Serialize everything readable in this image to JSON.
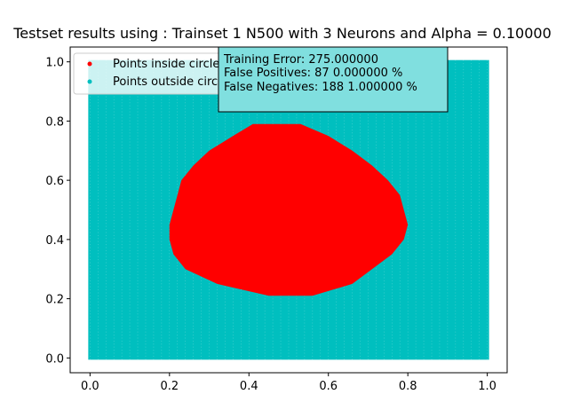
{
  "chart_data": {
    "type": "scatter",
    "title": "Testset results using : Trainset 1 N500 with 3 Neurons and Alpha = 0.10000",
    "xlabel": "",
    "ylabel": "",
    "xlim": [
      -0.05,
      1.05
    ],
    "ylim": [
      -0.05,
      1.05
    ],
    "xticks": [
      "0.0",
      "0.2",
      "0.4",
      "0.6",
      "0.8",
      "1.0"
    ],
    "yticks": [
      "0.0",
      "0.2",
      "0.4",
      "0.6",
      "0.8",
      "1.0"
    ],
    "grid": false,
    "legend_position": "upper-left",
    "series": [
      {
        "name": "Points inside circle",
        "color": "#ff0000",
        "marker": "dot",
        "region_boundary": {
          "y": [
            0.21,
            0.25,
            0.3,
            0.35,
            0.4,
            0.45,
            0.5,
            0.55,
            0.6,
            0.65,
            0.7,
            0.75,
            0.79
          ],
          "x_min": [
            0.45,
            0.32,
            0.24,
            0.21,
            0.2,
            0.2,
            0.21,
            0.22,
            0.23,
            0.26,
            0.3,
            0.36,
            0.41
          ],
          "x_max": [
            0.56,
            0.66,
            0.71,
            0.76,
            0.79,
            0.8,
            0.79,
            0.78,
            0.75,
            0.71,
            0.66,
            0.6,
            0.53
          ]
        }
      },
      {
        "name": "Points outside circle",
        "color": "#00bfbf",
        "marker": "dot",
        "region": "all grid points in [0,1] x [0,1] not inside the red region"
      }
    ],
    "grid_spacing": 0.01,
    "annotation": {
      "lines": [
        "Training Error: 275.000000",
        "False Positives: 87  0.000000 %",
        "False Negatives: 188  1.000000 %"
      ],
      "facecolor": "#80dfdf"
    }
  }
}
